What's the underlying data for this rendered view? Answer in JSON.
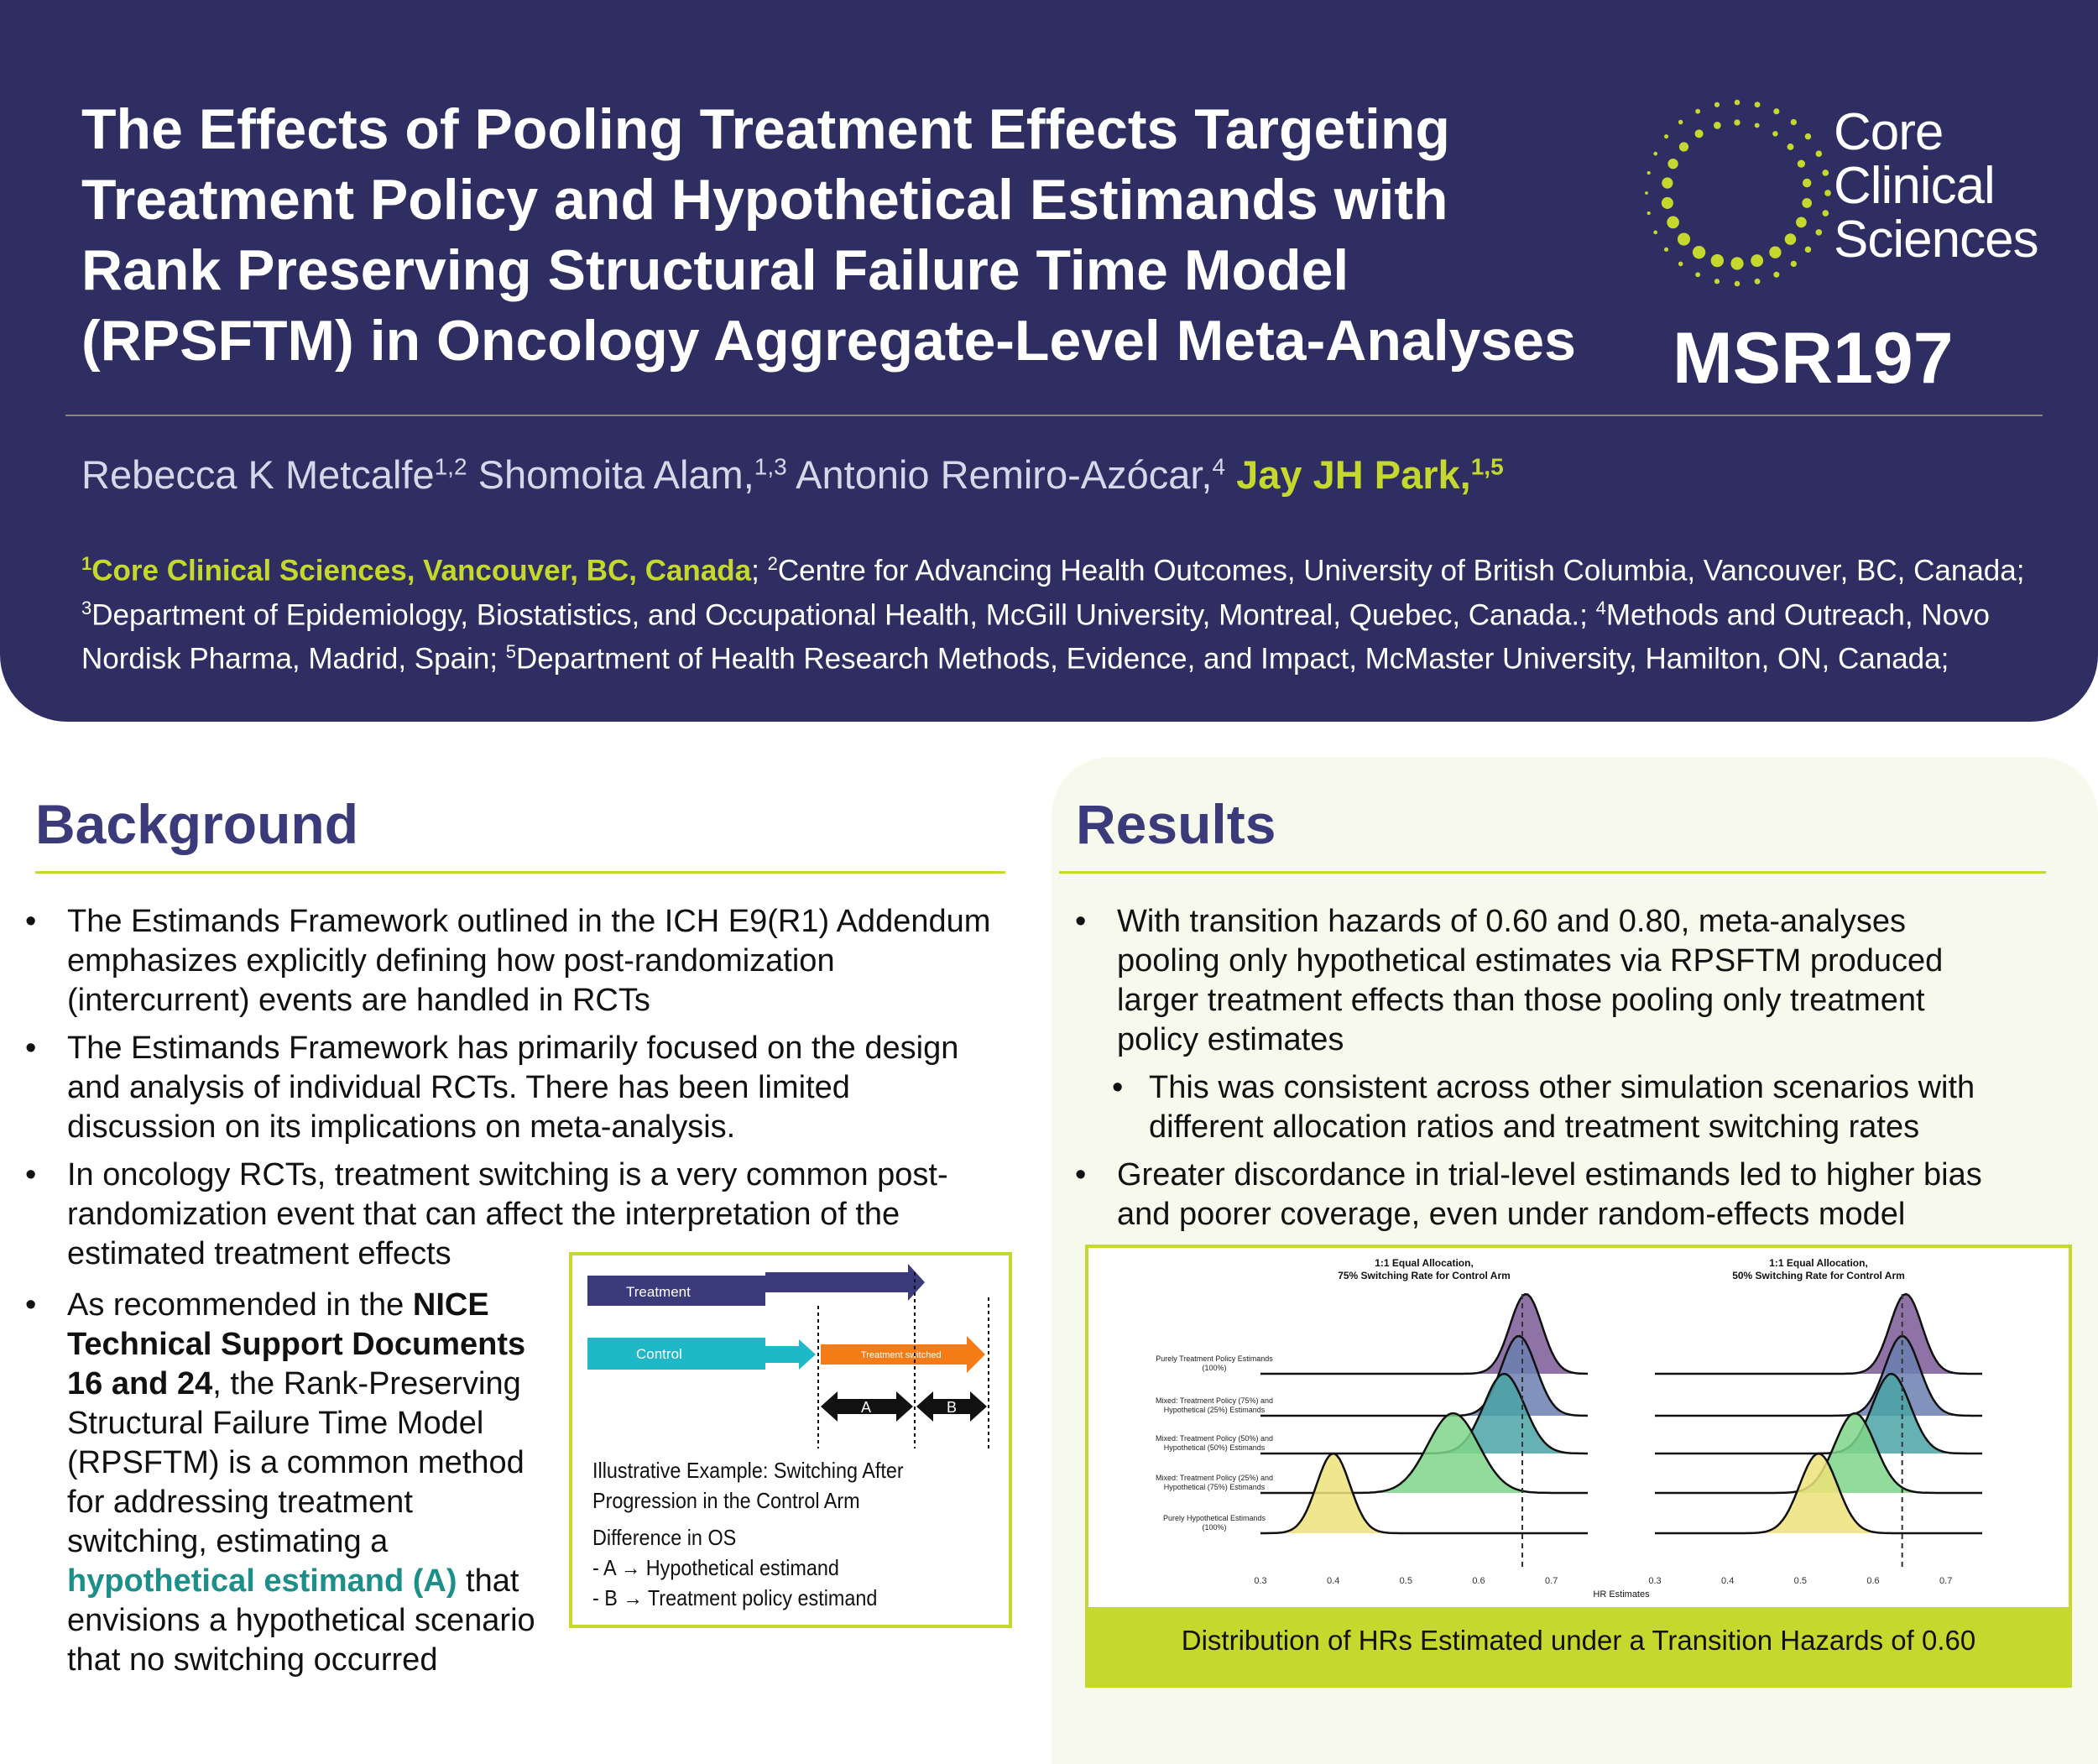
{
  "header": {
    "title_lines": [
      "The Effects of Pooling Treatment Effects Targeting",
      "Treatment Policy and Hypothetical Estimands with",
      "Rank Preserving Structural Failure Time Model",
      "(RPSFTM) in Oncology Aggregate-Level Meta-Analyses"
    ],
    "logo_lines": [
      "Core",
      "Clinical",
      "Sciences"
    ],
    "poster_id": "MSR197",
    "authors": [
      {
        "name": "Rebecca K Metcalfe",
        "sup": "1,2",
        "highlight": false
      },
      {
        "name": " Shomoita Alam,",
        "sup": "1,3",
        "highlight": false
      },
      {
        "name": " Antonio Remiro-Azócar,",
        "sup": "4",
        "highlight": false
      },
      {
        "name": " Jay JH Park,",
        "sup": "1,5",
        "highlight": true
      }
    ],
    "affiliations": {
      "a1_sup": "1",
      "a1_text": "Core Clinical Sciences, Vancouver, BC, Canada",
      "sep1": "; ",
      "a2_sup": "2",
      "a2_text": "Centre for Advancing Health Outcomes, University of British Columbia, Vancouver, BC, Canada; ",
      "a3_sup": "3",
      "a3_text": "Department of Epidemiology, Biostatistics, and Occupational Health, McGill University, Montreal, Quebec, Canada.; ",
      "a4_sup": "4",
      "a4_text": "Methods and Outreach, Novo Nordisk Pharma, Madrid, Spain; ",
      "a5_sup": "5",
      "a5_text": "Department of Health Research Methods, Evidence, and Impact, McMaster University, Hamilton, ON, Canada;"
    }
  },
  "background": {
    "title": "Background",
    "b1": "The Estimands Framework outlined in the ICH E9(R1) Addendum emphasizes explicitly defining how post-randomization (intercurrent) events are handled in RCTs",
    "b2": "The Estimands Framework has primarily focused on the design and analysis of individual RCTs. There has been limited discussion on its implications on meta-analysis.",
    "b3": "In oncology RCTs, treatment switching is a very common post-randomization event that can affect the interpretation of the estimated treatment effects",
    "b4_p1": "As recommended in the ",
    "b4_bold": "NICE Technical Support Documents 16 and 24",
    "b4_p2": ", the Rank-Preserving Structural Failure Time Model (RPSFTM) is a common method for addressing treatment switching, estimating a ",
    "b4_teal": "hypothetical estimand (A)",
    "b4_p3": " that envisions a hypothetical scenario that no switching occurred"
  },
  "illustration": {
    "treatment_label": "Treatment",
    "control_label": "Control",
    "switched_label": "Treatment switched",
    "seg_a": "A",
    "seg_b": "B",
    "caption_title_1": "Illustrative Example: Switching After",
    "caption_title_2": "Progression in the Control Arm",
    "diff_title": "Difference in OS",
    "item_a": "-   A → Hypothetical estimand",
    "item_b": "-   B → Treatment policy estimand",
    "colors": {
      "treatment": "#3b3a7a",
      "control": "#1fb8c8",
      "switched": "#f47b16"
    }
  },
  "results": {
    "title": "Results",
    "b1": "With transition hazards of 0.60 and 0.80, meta-analyses pooling only hypothetical estimates via RPSFTM produced larger treatment effects than those pooling only treatment policy estimates",
    "b1_sub": "This was consistent across other simulation scenarios  with different allocation ratios and treatment switching rates",
    "b2": "Greater discordance in trial-level estimands led to higher bias and poorer coverage, even under random-effects model",
    "caption": "Distribution of HRs Estimated under a Transition Hazards of 0.60"
  },
  "chart_data": {
    "type": "ridgeline",
    "xlabel": "HR Estimates",
    "xlim": [
      0.3,
      0.75
    ],
    "xticks": [
      0.3,
      0.4,
      0.5,
      0.6,
      0.7
    ],
    "categories": [
      "Purely Treatment Policy Estimands (100%)",
      "Mixed: Treatment Policy (75%) and Hypothetical (25%) Estimands",
      "Mixed: Treatment Policy (50%) and Hypothetical (50%) Estimands",
      "Mixed: Treatment Policy (25%) and Hypothetical (75%) Estimands",
      "Purely Hypothetical Estimands (100%)"
    ],
    "category_colors": [
      "#7b5a96",
      "#6b7fb0",
      "#4aa3a6",
      "#7fd68a",
      "#ece27a"
    ],
    "panels": [
      {
        "title_1": "1:1 Equal Allocation,",
        "title_2": "75% Switching Rate for Control Arm",
        "reference_line": 0.66,
        "modes": [
          0.665,
          0.655,
          0.635,
          0.565,
          0.4
        ],
        "widths": [
          0.022,
          0.024,
          0.028,
          0.035,
          0.023
        ]
      },
      {
        "title_1": "1:1 Equal Allocation,",
        "title_2": "50% Switching Rate for Control Arm",
        "reference_line": 0.64,
        "modes": [
          0.645,
          0.64,
          0.625,
          0.575,
          0.525
        ],
        "widths": [
          0.022,
          0.024,
          0.026,
          0.028,
          0.026
        ]
      }
    ]
  }
}
